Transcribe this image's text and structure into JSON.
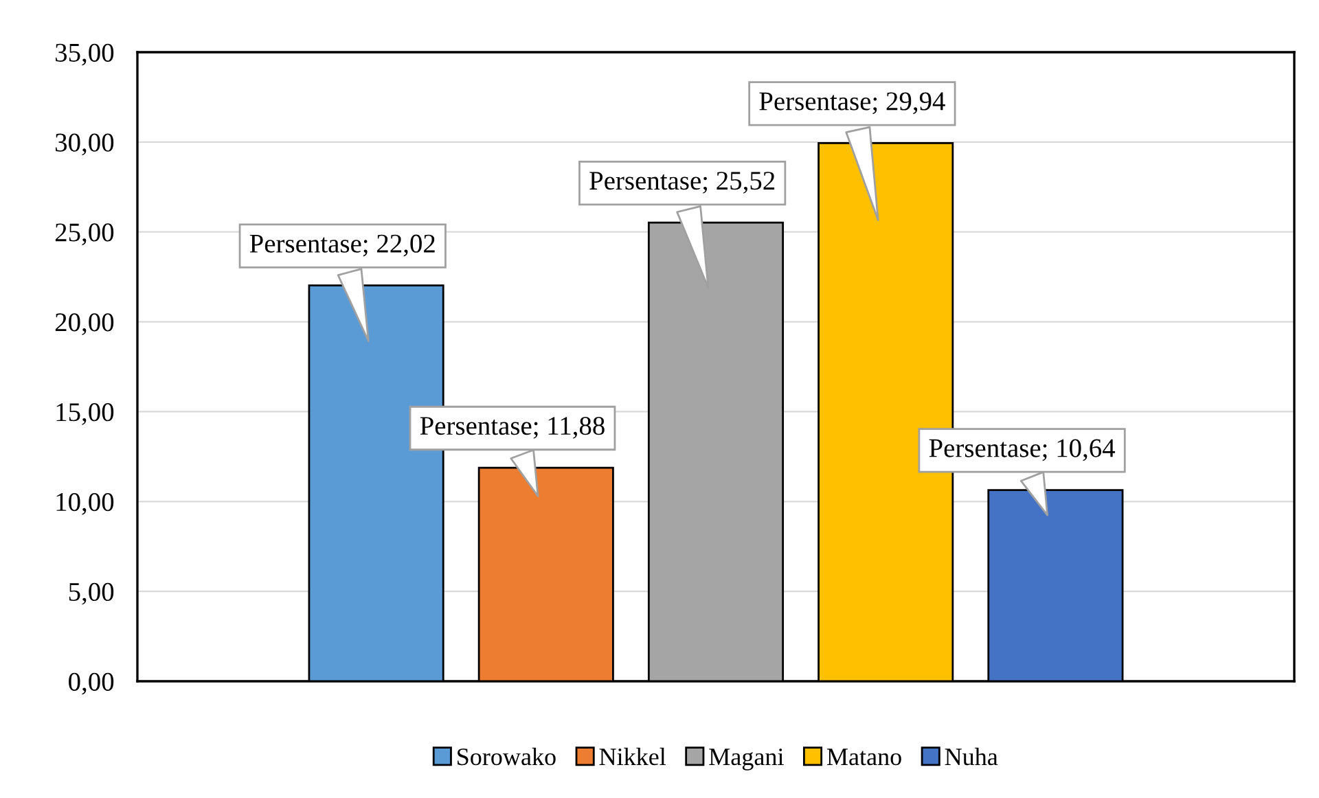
{
  "chart_data": {
    "type": "bar",
    "categories": [
      null
    ],
    "series": [
      {
        "name": "Sorowako",
        "color": "#5b9bd5",
        "values": [
          22.02
        ],
        "value_labels": [
          "Persentase; 22,02"
        ]
      },
      {
        "name": "Nikkel",
        "color": "#ed7d31",
        "values": [
          11.88
        ],
        "value_labels": [
          "Persentase; 11,88"
        ]
      },
      {
        "name": "Magani",
        "color": "#a5a5a5",
        "values": [
          25.52
        ],
        "value_labels": [
          "Persentase; 25,52"
        ]
      },
      {
        "name": "Matano",
        "color": "#ffc000",
        "values": [
          29.94
        ],
        "value_labels": [
          "Persentase; 29,94"
        ]
      },
      {
        "name": "Nuha",
        "color": "#4472c4",
        "values": [
          10.64
        ],
        "value_labels": [
          "Persentase; 10,64"
        ]
      }
    ],
    "ylim": [
      0,
      35
    ],
    "yticks": [
      {
        "value": 0,
        "label": "0,00"
      },
      {
        "value": 5,
        "label": "5,00"
      },
      {
        "value": 10,
        "label": "10,00"
      },
      {
        "value": 15,
        "label": "15,00"
      },
      {
        "value": 20,
        "label": "20,00"
      },
      {
        "value": 25,
        "label": "25,00"
      },
      {
        "value": 30,
        "label": "30,00"
      },
      {
        "value": 35,
        "label": "35,00"
      }
    ],
    "grid": "y",
    "legend": "bottom"
  }
}
